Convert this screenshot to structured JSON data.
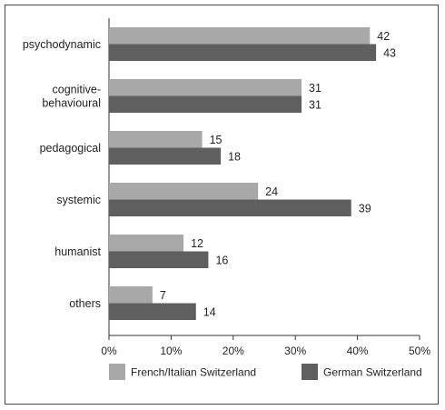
{
  "chart_data": {
    "type": "bar",
    "orientation": "horizontal",
    "categories": [
      [
        "psychodynamic"
      ],
      [
        "cognitive-",
        "behavioural"
      ],
      [
        "pedagogical"
      ],
      [
        "systemic"
      ],
      [
        "humanist"
      ],
      [
        "others"
      ]
    ],
    "series": [
      {
        "name": "French/Italian Switzerland",
        "color": "#a8a8a8",
        "values": [
          42,
          31,
          15,
          24,
          12,
          7
        ]
      },
      {
        "name": "German Switzerland",
        "color": "#5f5f5f",
        "values": [
          43,
          31,
          18,
          39,
          16,
          14
        ]
      }
    ],
    "xlim": [
      0,
      50
    ],
    "xticks": [
      "0%",
      "10%",
      "20%",
      "30%",
      "40%",
      "50%"
    ],
    "grid": false,
    "legend": "bottom",
    "data_labels": true
  }
}
